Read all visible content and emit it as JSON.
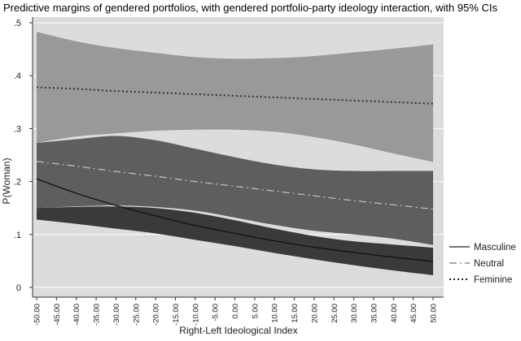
{
  "chart_data": {
    "type": "line",
    "title": "Predictive margins of gendered portfolios, with gendered portfolio-party ideology interaction, with 95% CIs",
    "xlabel": "Right-Left Ideological Index",
    "ylabel": "P(Woman)",
    "xlim": [
      -50,
      50
    ],
    "ylim": [
      0,
      0.5
    ],
    "x_ticks": [
      -50,
      -45,
      -40,
      -35,
      -30,
      -25,
      -20,
      -15,
      -10,
      -5,
      0,
      5,
      10,
      15,
      20,
      25,
      30,
      35,
      40,
      45,
      50
    ],
    "x_tick_labels": [
      "-50.00",
      "-45.00",
      "-40.00",
      "-35.00",
      "-30.00",
      "-25.00",
      "-20.00",
      "-15.00",
      "-10.00",
      "-5.00",
      "0.00",
      "5.00",
      "10.00",
      "15.00",
      "20.00",
      "25.00",
      "30.00",
      "35.00",
      "40.00",
      "45.00",
      "50.00"
    ],
    "y_ticks": [
      0,
      0.1,
      0.2,
      0.3,
      0.4,
      0.5
    ],
    "y_tick_labels": [
      "0",
      ".1",
      ".2",
      ".3",
      ".4",
      ".5"
    ],
    "grid": true,
    "legend_position": "right",
    "x": [
      -50,
      -40,
      -30,
      -20,
      -10,
      0,
      10,
      20,
      30,
      40,
      50
    ],
    "series": [
      {
        "name": "Masculine",
        "style": "solid",
        "line_color": "#111111",
        "band_color": "#3a3a3a",
        "values": [
          0.205,
          0.178,
          0.155,
          0.135,
          0.117,
          0.102,
          0.088,
          0.076,
          0.066,
          0.057,
          0.049
        ],
        "lower": [
          0.128,
          0.12,
          0.111,
          0.102,
          0.09,
          0.078,
          0.065,
          0.053,
          0.042,
          0.032,
          0.023
        ],
        "upper": [
          0.15,
          0.152,
          0.153,
          0.15,
          0.141,
          0.127,
          0.111,
          0.097,
          0.087,
          0.081,
          0.075
        ]
      },
      {
        "name": "Neutral",
        "style": "dashdot",
        "line_color": "#bbbbbb",
        "band_color": "#5e5e5e",
        "values": [
          0.238,
          0.229,
          0.219,
          0.21,
          0.2,
          0.191,
          0.182,
          0.173,
          0.164,
          0.156,
          0.148
        ],
        "lower": [
          0.15,
          0.153,
          0.155,
          0.152,
          0.145,
          0.132,
          0.118,
          0.107,
          0.1,
          0.092,
          0.08
        ],
        "upper": [
          0.273,
          0.28,
          0.286,
          0.278,
          0.262,
          0.246,
          0.232,
          0.223,
          0.22,
          0.22,
          0.22
        ]
      },
      {
        "name": "Feminine",
        "style": "dotted",
        "line_color": "#333333",
        "band_color": "#999999",
        "values": [
          0.378,
          0.375,
          0.371,
          0.368,
          0.365,
          0.362,
          0.359,
          0.356,
          0.353,
          0.35,
          0.347
        ],
        "lower": [
          0.273,
          0.285,
          0.291,
          0.296,
          0.298,
          0.298,
          0.294,
          0.284,
          0.27,
          0.253,
          0.237
        ],
        "upper": [
          0.483,
          0.465,
          0.452,
          0.443,
          0.435,
          0.432,
          0.433,
          0.437,
          0.444,
          0.451,
          0.459
        ]
      }
    ]
  }
}
